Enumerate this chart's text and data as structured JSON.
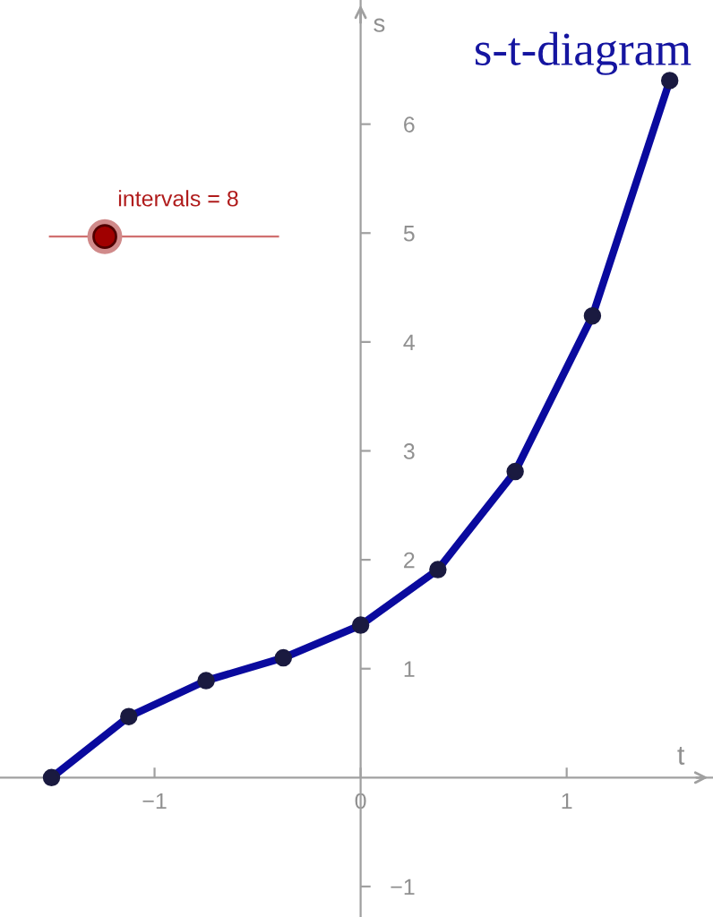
{
  "chart_data": {
    "type": "line",
    "title": "s-t-diagram",
    "xlabel": "t",
    "ylabel": "s",
    "x": [
      -1.5,
      -1.125,
      -0.75,
      -0.375,
      0,
      0.375,
      0.75,
      1.125,
      1.5
    ],
    "series": [
      {
        "color": "#0a0a9e",
        "values": [
          0,
          0.56,
          0.89,
          1.1,
          1.4,
          1.91,
          2.81,
          4.24,
          6.4
        ]
      }
    ],
    "xlim": [
      -1.75,
      1.71
    ],
    "ylim": [
      -1.28,
      7.14
    ],
    "xticks": [
      -1,
      0,
      1
    ],
    "yticks": [
      -1,
      1,
      2,
      3,
      4,
      5,
      6
    ],
    "marker": "circle",
    "line_style": "solid",
    "grid": false,
    "legend": false,
    "annotations": [
      "intervals = 8"
    ]
  }
}
